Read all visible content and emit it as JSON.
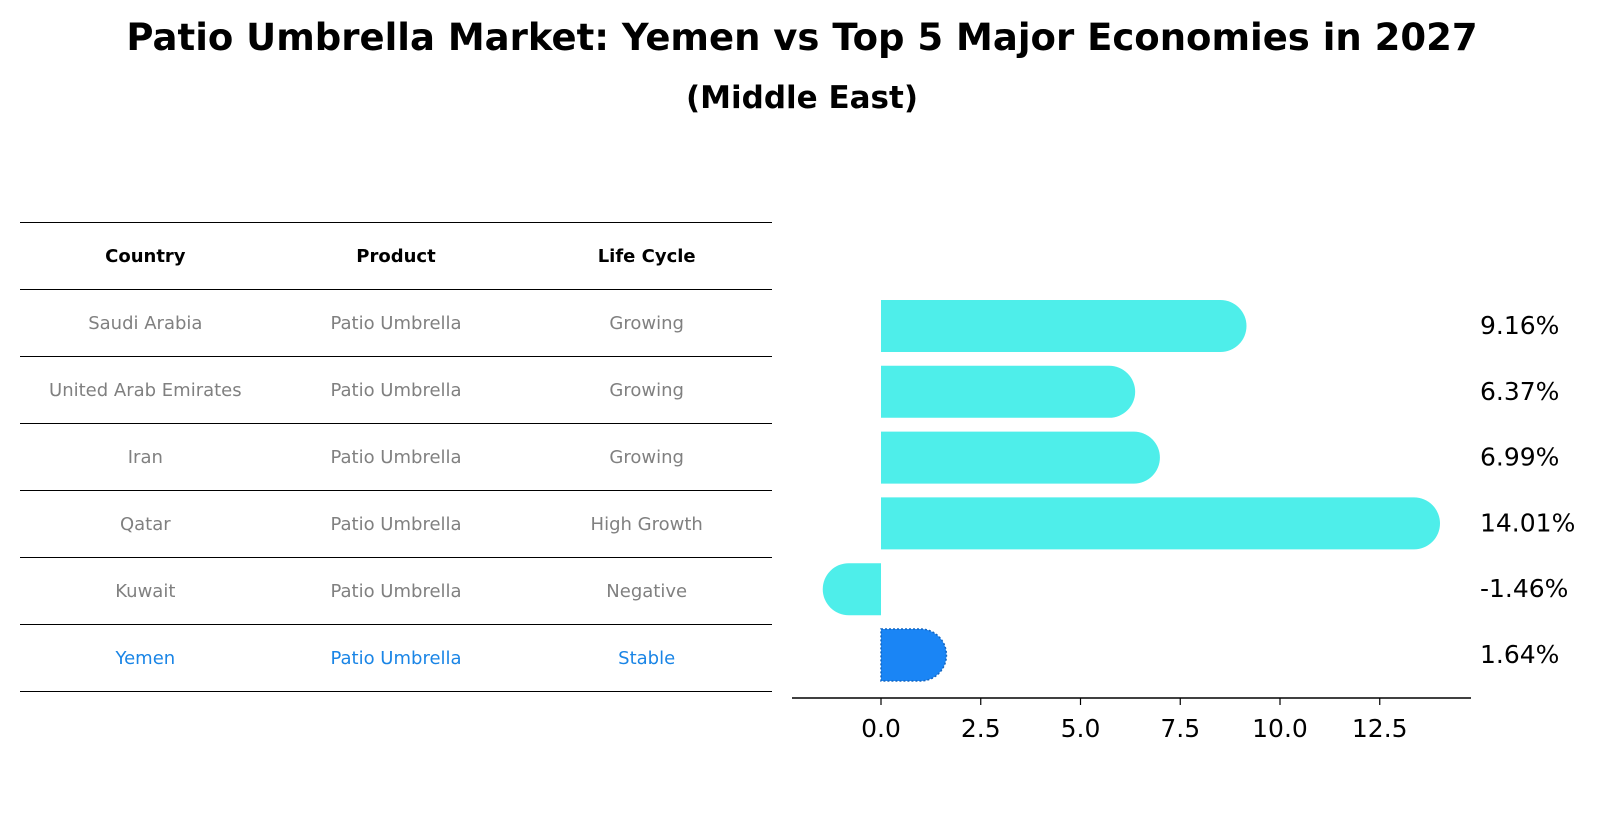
{
  "title": "Patio Umbrella Market: Yemen vs Top 5 Major Economies in 2027",
  "subtitle": "(Middle East)",
  "table": {
    "headers": [
      "Country",
      "Product",
      "Life Cycle"
    ],
    "rows": [
      {
        "country": "Saudi Arabia",
        "product": "Patio Umbrella",
        "life_cycle": "Growing",
        "highlight": false
      },
      {
        "country": "United Arab Emirates",
        "product": "Patio Umbrella",
        "life_cycle": "Growing",
        "highlight": false
      },
      {
        "country": "Iran",
        "product": "Patio Umbrella",
        "life_cycle": "Growing",
        "highlight": false
      },
      {
        "country": "Qatar",
        "product": "Patio Umbrella",
        "life_cycle": "High Growth",
        "highlight": false
      },
      {
        "country": "Kuwait",
        "product": "Patio Umbrella",
        "life_cycle": "Negative",
        "highlight": false
      },
      {
        "country": "Yemen",
        "product": "Patio Umbrella",
        "life_cycle": "Stable",
        "highlight": true
      }
    ]
  },
  "chart_data": {
    "type": "bar",
    "orientation": "horizontal",
    "categories": [
      "Saudi Arabia",
      "United Arab Emirates",
      "Iran",
      "Qatar",
      "Kuwait",
      "Yemen"
    ],
    "values": [
      9.16,
      6.37,
      6.99,
      14.01,
      -1.46,
      1.64
    ],
    "value_labels": [
      "9.16%",
      "6.37%",
      "6.99%",
      "14.01%",
      "-1.46%",
      "1.64%"
    ],
    "highlight_index": 5,
    "xlim": [
      -1.96,
      14.51
    ],
    "xticks": [
      0.0,
      2.5,
      5.0,
      7.5,
      10.0,
      12.5
    ],
    "xtick_labels": [
      "0.0",
      "2.5",
      "5.0",
      "7.5",
      "10.0",
      "12.5"
    ],
    "xlabel": "",
    "ylabel": "",
    "grid": false,
    "colors": {
      "default": "#4eeeea",
      "highlight": "#1a85f5"
    }
  }
}
